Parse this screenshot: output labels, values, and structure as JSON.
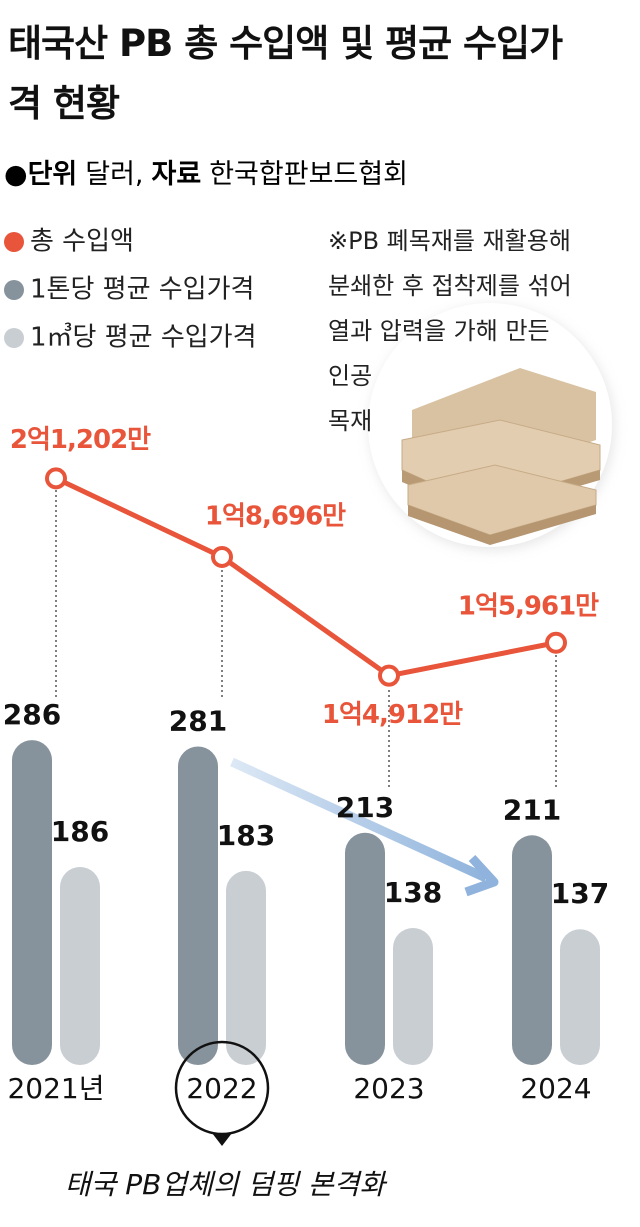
{
  "chart_data": {
    "type": "bar",
    "title": "태국산 PB 총 수입액 및 평균 수입가격 현황",
    "unit_label": "단위",
    "unit": "달러,",
    "source_label": "자료",
    "source": "한국합판보드협회",
    "note_lines": [
      "※PB 폐목재를 재활용해",
      "분쇄한 후 접착제를 섞어",
      "열과 압력을 가해 만든",
      "인공",
      "목재"
    ],
    "annotation": "태국 PB업체의 덤핑 본격화",
    "categories": [
      "2021년",
      "2022",
      "2023",
      "2024"
    ],
    "ylim": [
      30,
      554
    ],
    "y2lim": [
      25000000,
      237000000
    ],
    "series": [
      {
        "name": "총 수입액",
        "color": "#e8553a",
        "type": "line",
        "axis": "y2",
        "values": [
          212020000,
          186960000,
          149120000,
          159610000
        ],
        "value_labels": [
          "2억1,202만",
          "1억8,696만",
          "1억4,912만",
          "1억5,961만"
        ]
      },
      {
        "name": "1톤당 평균 수입가격",
        "color": "#87939c",
        "values": [
          286,
          281,
          213,
          211
        ]
      },
      {
        "name": "1㎥당 평균 수입가격",
        "color": "#c9ced3",
        "values": [
          186,
          183,
          138,
          137
        ]
      }
    ]
  }
}
